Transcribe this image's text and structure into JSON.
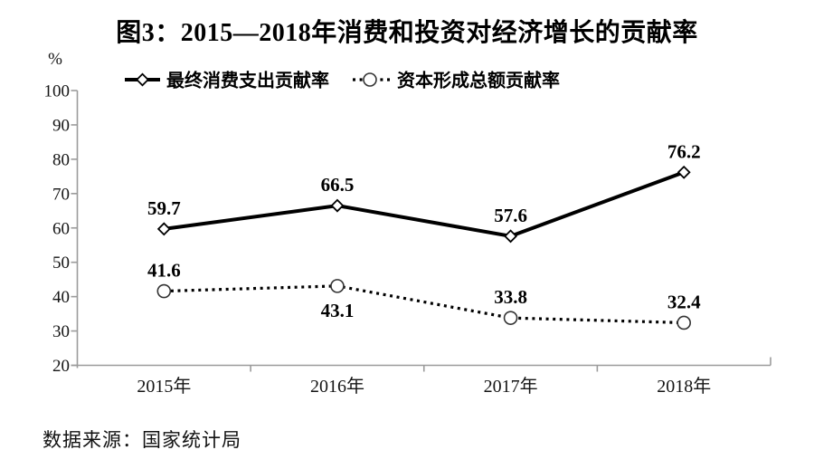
{
  "chart_data": {
    "type": "line",
    "title": "图3：2015—2018年消费和投资对经济增长的贡献率",
    "y_unit": "%",
    "xlabel": "",
    "ylabel": "",
    "categories": [
      "2015年",
      "2016年",
      "2017年",
      "2018年"
    ],
    "series": [
      {
        "name": "最终消费支出贡献率",
        "values": [
          59.7,
          66.5,
          57.6,
          76.2
        ],
        "line_style": "solid",
        "marker": "diamond",
        "color": "#000000"
      },
      {
        "name": "资本形成总额贡献率",
        "values": [
          41.6,
          43.1,
          33.8,
          32.4
        ],
        "line_style": "dotted",
        "marker": "circle",
        "color": "#000000",
        "label_below": [
          false,
          true,
          false,
          false
        ]
      }
    ],
    "ylim": [
      20,
      100
    ],
    "y_ticks": [
      20,
      30,
      40,
      50,
      60,
      70,
      80,
      90,
      100
    ],
    "grid": false,
    "legend_position": "top-inside"
  },
  "source": "数据来源：国家统计局",
  "colors": {
    "ink": "#000000",
    "axis": "#9b9b9b",
    "marker_fill": "#ffffff",
    "marker_stroke": "#333333",
    "background": "#ffffff"
  }
}
